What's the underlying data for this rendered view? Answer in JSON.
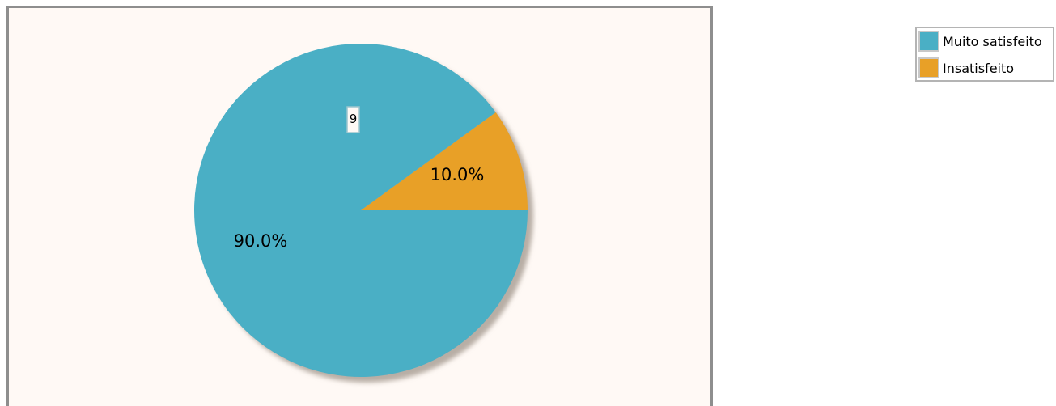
{
  "chart_data": {
    "type": "pie",
    "slices": [
      {
        "label": "Muito satisfeito",
        "value": 9,
        "percent_label": "90.0%",
        "color": "#4aafc5"
      },
      {
        "label": "Insatisfeito",
        "value": 1,
        "percent_label": "10.0%",
        "color": "#e8a027"
      }
    ],
    "callout_value": "9",
    "legend_position": "top-right",
    "background_color": "#fff9f5"
  }
}
